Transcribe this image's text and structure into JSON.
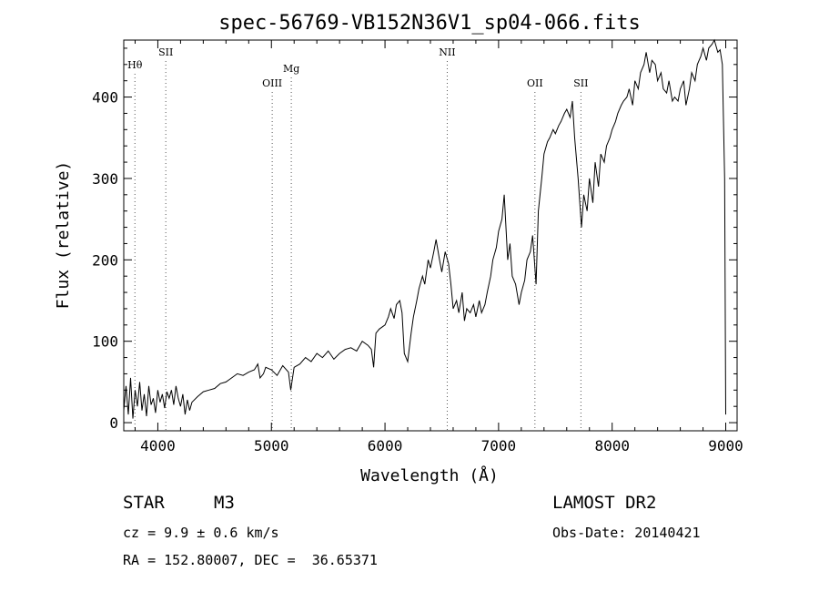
{
  "chart_data": {
    "type": "line",
    "title": "spec-56769-VB152N36V1_sp04-066.fits",
    "xlabel": "Wavelength (Å)",
    "ylabel": "Flux (relative)",
    "xlim": [
      3700,
      9100
    ],
    "ylim": [
      -10,
      470
    ],
    "x_ticks": [
      4000,
      5000,
      6000,
      7000,
      8000,
      9000
    ],
    "y_ticks": [
      0,
      100,
      200,
      300,
      400
    ],
    "grid": false,
    "series": [
      {
        "x": [
          3700,
          3720,
          3740,
          3760,
          3780,
          3800,
          3820,
          3840,
          3860,
          3880,
          3900,
          3920,
          3940,
          3960,
          3980,
          4000,
          4020,
          4040,
          4060,
          4080,
          4100,
          4120,
          4140,
          4160,
          4180,
          4200,
          4220,
          4240,
          4260,
          4280,
          4300,
          4350,
          4400,
          4450,
          4500,
          4550,
          4600,
          4650,
          4700,
          4750,
          4800,
          4850,
          4880,
          4900,
          4930,
          4950,
          5000,
          5050,
          5100,
          5150,
          5170,
          5200,
          5250,
          5300,
          5350,
          5400,
          5450,
          5500,
          5550,
          5600,
          5650,
          5700,
          5750,
          5800,
          5850,
          5880,
          5900,
          5920,
          5950,
          6000,
          6030,
          6050,
          6080,
          6100,
          6130,
          6150,
          6170,
          6200,
          6230,
          6250,
          6280,
          6300,
          6330,
          6350,
          6380,
          6400,
          6430,
          6450,
          6480,
          6500,
          6530,
          6560,
          6580,
          6600,
          6630,
          6650,
          6680,
          6700,
          6720,
          6750,
          6780,
          6800,
          6830,
          6850,
          6880,
          6900,
          6930,
          6950,
          6980,
          7000,
          7030,
          7050,
          7080,
          7100,
          7120,
          7150,
          7180,
          7200,
          7230,
          7250,
          7280,
          7300,
          7330,
          7350,
          7380,
          7400,
          7430,
          7450,
          7480,
          7500,
          7530,
          7550,
          7580,
          7600,
          7630,
          7650,
          7670,
          7700,
          7730,
          7750,
          7780,
          7800,
          7830,
          7850,
          7880,
          7900,
          7930,
          7950,
          7980,
          8000,
          8030,
          8050,
          8080,
          8100,
          8130,
          8150,
          8180,
          8200,
          8230,
          8250,
          8280,
          8300,
          8330,
          8350,
          8380,
          8400,
          8430,
          8450,
          8480,
          8500,
          8530,
          8550,
          8580,
          8600,
          8630,
          8650,
          8680,
          8700,
          8730,
          8750,
          8780,
          8800,
          8830,
          8850,
          8880,
          8900,
          8930,
          8950,
          8970,
          8990,
          9000
        ],
        "y": [
          15,
          45,
          10,
          55,
          5,
          40,
          20,
          50,
          15,
          35,
          8,
          45,
          22,
          30,
          12,
          40,
          25,
          35,
          18,
          38,
          30,
          40,
          22,
          45,
          30,
          20,
          35,
          10,
          28,
          15,
          25,
          32,
          38,
          40,
          42,
          48,
          50,
          55,
          60,
          58,
          62,
          65,
          72,
          55,
          60,
          68,
          65,
          58,
          70,
          62,
          40,
          68,
          72,
          80,
          75,
          85,
          80,
          88,
          78,
          85,
          90,
          92,
          88,
          100,
          95,
          90,
          68,
          110,
          115,
          120,
          130,
          140,
          128,
          145,
          150,
          135,
          85,
          75,
          110,
          130,
          150,
          165,
          180,
          170,
          200,
          190,
          210,
          225,
          200,
          185,
          210,
          195,
          170,
          140,
          150,
          135,
          160,
          125,
          140,
          135,
          145,
          130,
          150,
          135,
          145,
          160,
          180,
          200,
          215,
          235,
          250,
          280,
          200,
          220,
          180,
          170,
          145,
          160,
          175,
          200,
          210,
          230,
          170,
          260,
          300,
          330,
          345,
          350,
          360,
          355,
          365,
          370,
          380,
          385,
          375,
          395,
          350,
          300,
          240,
          280,
          260,
          300,
          270,
          320,
          290,
          330,
          320,
          340,
          350,
          360,
          370,
          380,
          390,
          395,
          400,
          410,
          390,
          420,
          410,
          430,
          440,
          455,
          430,
          445,
          440,
          420,
          430,
          410,
          405,
          420,
          395,
          400,
          395,
          410,
          420,
          390,
          410,
          430,
          420,
          440,
          450,
          460,
          445,
          460,
          465,
          470,
          455,
          458,
          440,
          300,
          10
        ]
      }
    ],
    "line_markers": [
      {
        "label": "Hθ",
        "x": 3798
      },
      {
        "label": "SII",
        "x": 4070
      },
      {
        "label": "OIII",
        "x": 5007
      },
      {
        "label": "Mg",
        "x": 5175
      },
      {
        "label": "NII",
        "x": 6548
      },
      {
        "label": "OII",
        "x": 7320
      },
      {
        "label": "SII",
        "x": 7725
      }
    ]
  },
  "info": {
    "object_class": "STAR",
    "subclass": "M3",
    "survey": "LAMOST DR2",
    "cz": "cz = 9.9 ± 0.6 km/s",
    "obs_date": "Obs-Date: 20140421",
    "coords": "RA = 152.80007, DEC =  36.65371"
  }
}
